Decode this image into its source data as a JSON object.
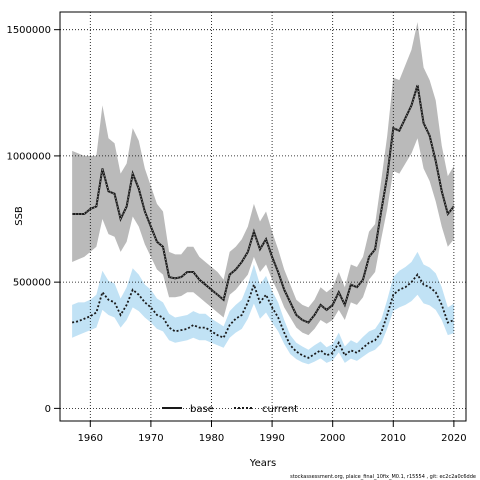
{
  "chart_data": {
    "type": "line",
    "xlabel": "Years",
    "ylabel": "SSB",
    "xlim": [
      1955,
      2022
    ],
    "ylim": [
      -50000,
      1570000
    ],
    "x_ticks": [
      1960,
      1970,
      1980,
      1990,
      2000,
      2010,
      2020
    ],
    "y_ticks": [
      0,
      500000,
      1000000,
      1500000
    ],
    "y_tick_labels": [
      "0",
      "500000",
      "1000000",
      "1500000"
    ],
    "grid": true,
    "legend_position": "bottom-center",
    "series": [
      {
        "name": "base",
        "color": "#1a1a1a",
        "band_color": "#8c8c8c",
        "x": [
          1957,
          1958,
          1959,
          1960,
          1961,
          1962,
          1963,
          1964,
          1965,
          1966,
          1967,
          1968,
          1969,
          1970,
          1971,
          1972,
          1973,
          1974,
          1975,
          1976,
          1977,
          1978,
          1979,
          1980,
          1981,
          1982,
          1983,
          1984,
          1985,
          1986,
          1987,
          1988,
          1989,
          1990,
          1991,
          1992,
          1993,
          1994,
          1995,
          1996,
          1997,
          1998,
          1999,
          2000,
          2001,
          2002,
          2003,
          2004,
          2005,
          2006,
          2007,
          2008,
          2009,
          2010,
          2011,
          2012,
          2013,
          2014,
          2015,
          2016,
          2017,
          2018,
          2019,
          2020
        ],
        "values": [
          770000,
          770000,
          770000,
          790000,
          800000,
          950000,
          860000,
          850000,
          750000,
          800000,
          930000,
          870000,
          780000,
          720000,
          660000,
          640000,
          520000,
          515000,
          520000,
          540000,
          540000,
          510000,
          490000,
          470000,
          450000,
          430000,
          530000,
          550000,
          580000,
          620000,
          700000,
          630000,
          670000,
          600000,
          540000,
          470000,
          420000,
          370000,
          350000,
          340000,
          370000,
          410000,
          390000,
          410000,
          460000,
          410000,
          490000,
          480000,
          510000,
          600000,
          630000,
          780000,
          920000,
          1110000,
          1100000,
          1150000,
          1200000,
          1280000,
          1130000,
          1080000,
          980000,
          860000,
          770000,
          800000
        ],
        "lower": [
          580000,
          590000,
          600000,
          620000,
          640000,
          750000,
          690000,
          680000,
          620000,
          660000,
          760000,
          720000,
          650000,
          600000,
          550000,
          530000,
          440000,
          440000,
          445000,
          460000,
          460000,
          440000,
          420000,
          400000,
          380000,
          360000,
          450000,
          470000,
          500000,
          530000,
          600000,
          540000,
          570000,
          510000,
          460000,
          400000,
          360000,
          320000,
          300000,
          290000,
          315000,
          350000,
          335000,
          350000,
          390000,
          350000,
          420000,
          410000,
          440000,
          510000,
          540000,
          670000,
          790000,
          940000,
          930000,
          970000,
          1010000,
          1070000,
          950000,
          900000,
          820000,
          720000,
          640000,
          670000
        ],
        "upper": [
          1020000,
          1010000,
          1000000,
          1000000,
          1000000,
          1200000,
          1070000,
          1050000,
          930000,
          970000,
          1110000,
          1060000,
          950000,
          880000,
          810000,
          780000,
          620000,
          610000,
          610000,
          640000,
          640000,
          600000,
          580000,
          560000,
          540000,
          510000,
          620000,
          640000,
          670000,
          720000,
          810000,
          740000,
          780000,
          700000,
          630000,
          550000,
          490000,
          430000,
          410000,
          400000,
          430000,
          480000,
          460000,
          480000,
          540000,
          480000,
          570000,
          560000,
          600000,
          700000,
          730000,
          900000,
          1080000,
          1310000,
          1300000,
          1360000,
          1420000,
          1530000,
          1350000,
          1300000,
          1220000,
          1040000,
          920000,
          960000
        ]
      },
      {
        "name": "current",
        "color": "#1a1a1a",
        "band_color": "#9fd3f0",
        "x": [
          1957,
          1958,
          1959,
          1960,
          1961,
          1962,
          1963,
          1964,
          1965,
          1966,
          1967,
          1968,
          1969,
          1970,
          1971,
          1972,
          1973,
          1974,
          1975,
          1976,
          1977,
          1978,
          1979,
          1980,
          1981,
          1982,
          1983,
          1984,
          1985,
          1986,
          1987,
          1988,
          1989,
          1990,
          1991,
          1992,
          1993,
          1994,
          1995,
          1996,
          1997,
          1998,
          1999,
          2000,
          2001,
          2002,
          2003,
          2004,
          2005,
          2006,
          2007,
          2008,
          2009,
          2010,
          2011,
          2012,
          2013,
          2014,
          2015,
          2016,
          2017,
          2018,
          2019,
          2020
        ],
        "values": [
          340000,
          345000,
          355000,
          365000,
          380000,
          460000,
          430000,
          420000,
          370000,
          410000,
          470000,
          450000,
          420000,
          400000,
          370000,
          360000,
          320000,
          305000,
          310000,
          315000,
          330000,
          320000,
          320000,
          305000,
          290000,
          280000,
          330000,
          355000,
          370000,
          420000,
          490000,
          420000,
          450000,
          400000,
          360000,
          300000,
          250000,
          225000,
          210000,
          200000,
          215000,
          230000,
          210000,
          220000,
          260000,
          210000,
          230000,
          220000,
          240000,
          260000,
          270000,
          300000,
          370000,
          450000,
          470000,
          480000,
          500000,
          530000,
          490000,
          480000,
          460000,
          410000,
          340000,
          350000
        ],
        "lower": [
          280000,
          290000,
          300000,
          310000,
          320000,
          390000,
          370000,
          360000,
          320000,
          350000,
          400000,
          385000,
          360000,
          340000,
          315000,
          305000,
          270000,
          260000,
          265000,
          270000,
          280000,
          270000,
          270000,
          260000,
          250000,
          240000,
          280000,
          300000,
          315000,
          355000,
          415000,
          355000,
          380000,
          340000,
          305000,
          255000,
          215000,
          195000,
          182000,
          175000,
          185000,
          198000,
          180000,
          190000,
          222000,
          180000,
          197000,
          188000,
          205000,
          222000,
          232000,
          256000,
          316000,
          386000,
          400000,
          410000,
          425000,
          450000,
          416000,
          408000,
          390000,
          350000,
          290000,
          298000
        ],
        "upper": [
          410000,
          420000,
          420000,
          430000,
          450000,
          545000,
          505000,
          495000,
          435000,
          480000,
          555000,
          530000,
          490000,
          470000,
          435000,
          420000,
          375000,
          360000,
          365000,
          370000,
          385000,
          375000,
          375000,
          355000,
          340000,
          325000,
          385000,
          410000,
          430000,
          490000,
          570000,
          490000,
          525000,
          465000,
          420000,
          350000,
          290000,
          260000,
          245000,
          232000,
          250000,
          265000,
          242000,
          255000,
          300000,
          245000,
          270000,
          258000,
          283000,
          305000,
          315000,
          350000,
          430000,
          520000,
          545000,
          560000,
          580000,
          620000,
          570000,
          558000,
          535000,
          480000,
          400000,
          415000
        ]
      }
    ]
  },
  "footnote": "stockassessment.org, plaice_final_10fix_M0.1, r15554 , git: ec2c2a0c6dde"
}
